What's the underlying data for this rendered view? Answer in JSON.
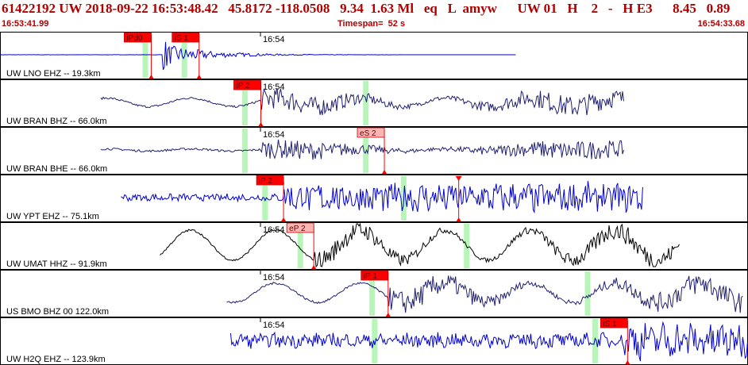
{
  "header": {
    "event_line": "61422192 UW 2018-09-22 16:53:48.42   45.8172 -118.0508   9.34  1.63 Ml   eq   L  amyw      UW 01   H    2   -   H E3      8.45   0.89",
    "start_time": "16:53:41.99",
    "timespan": "Timespan=  52 s",
    "end_time": "16:54:33.68"
  },
  "colors": {
    "header_text": "#b00000",
    "phase_marker": "#ff0000",
    "s_marker_fill": "#ffb4b4",
    "phase_window": "#b8f5b8",
    "trace_blue": "#0000d0",
    "trace_navy": "#202070",
    "trace_black": "#000000"
  },
  "minute_label": "16:54",
  "panels": [
    {
      "label": "UW LNO EHZ -- 19.3km",
      "color": "trace_blue",
      "kind": "lno",
      "start_s": 0.0,
      "end_s": 41.0,
      "onset_s": 12.9,
      "amp": 0.95,
      "pre_noise": 0.01,
      "phase_windows_s": [
        11.5,
        14.6
      ],
      "picks": [
        {
          "label": "iPd0",
          "t_s": 12.0,
          "fill": "#ff0000"
        },
        {
          "label": "iS 1",
          "t_s": 15.8,
          "fill": "#ff0000"
        }
      ]
    },
    {
      "label": "UW BRAN BHZ -- 66.0km",
      "color": "trace_navy",
      "kind": "swell",
      "start_s": 8.0,
      "end_s": 49.5,
      "onset_s": 20.7,
      "amp": 0.5,
      "pre_noise": 0.2,
      "phase_windows_s": [
        19.4,
        29.0
      ],
      "picks": [
        {
          "label": "iP 2",
          "t_s": 20.7,
          "fill": "#ff0000"
        }
      ]
    },
    {
      "label": "UW BRAN BHE -- 66.0km",
      "color": "trace_navy",
      "kind": "swell",
      "start_s": 8.0,
      "end_s": 49.5,
      "onset_s": 20.7,
      "amp": 0.45,
      "pre_noise": 0.05,
      "phase_windows_s": [
        19.4,
        29.0
      ],
      "picks": [
        {
          "label": "eS 2",
          "t_s": 30.5,
          "fill": "#ffb4b4"
        }
      ]
    },
    {
      "label": "UW YPT EHZ -- 75.1km",
      "color": "trace_blue",
      "kind": "noisy",
      "start_s": 9.6,
      "end_s": 51.0,
      "onset_s": 22.5,
      "amp": 0.6,
      "pre_noise": 0.15,
      "phase_windows_s": [
        21.0,
        32.0
      ],
      "picks": [
        {
          "label": "iP 2",
          "t_s": 22.5,
          "fill": "#ff0000"
        },
        {
          "label": "",
          "t_s": 36.4,
          "fill": "#ff0000"
        }
      ]
    },
    {
      "label": "UW UMAT HHZ -- 91.9km",
      "color": "trace_black",
      "kind": "swell",
      "start_s": 12.7,
      "end_s": 54.0,
      "onset_s": 24.9,
      "amp": 0.45,
      "pre_noise": 0.7,
      "phase_windows_s": [
        23.8,
        37.0
      ],
      "picks": [
        {
          "label": "eP 2",
          "t_s": 24.9,
          "fill": "#ffb4b4"
        }
      ]
    },
    {
      "label": "US BMO BHZ 00 122.0km",
      "color": "trace_navy",
      "kind": "swell",
      "start_s": 18.0,
      "end_s": 59.0,
      "onset_s": 30.8,
      "amp": 0.55,
      "pre_noise": 0.45,
      "phase_windows_s": [
        29.5,
        46.6
      ],
      "picks": [
        {
          "label": "iP 1",
          "t_s": 30.8,
          "fill": "#ff0000"
        }
      ]
    },
    {
      "label": "UW H2Q EHZ -- 123.9km",
      "color": "trace_blue",
      "kind": "noisy",
      "start_s": 18.3,
      "end_s": 59.6,
      "onset_s": 49.5,
      "amp": 0.75,
      "pre_noise": 0.3,
      "phase_windows_s": [
        29.7,
        47.2
      ],
      "picks": [
        {
          "label": "iS 1",
          "t_s": 49.8,
          "fill": "#ff0000"
        }
      ]
    }
  ]
}
